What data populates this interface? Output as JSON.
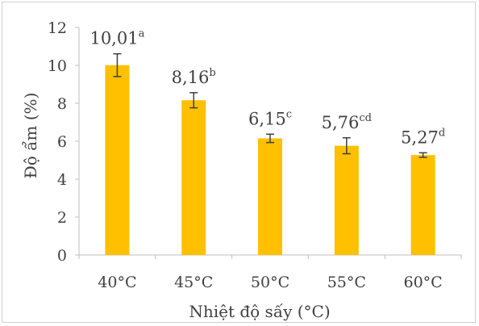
{
  "chart_data": {
    "type": "bar",
    "categories": [
      "40°C",
      "45°C",
      "50°C",
      "55°C",
      "60°C"
    ],
    "values": [
      10.01,
      8.16,
      6.15,
      5.76,
      5.27
    ],
    "errors": [
      0.6,
      0.4,
      0.22,
      0.42,
      0.12
    ],
    "data_labels": [
      {
        "value": "10,01",
        "letter": "a"
      },
      {
        "value": "8,16",
        "letter": "b"
      },
      {
        "value": "6,15",
        "letter": "c"
      },
      {
        "value": "5,76",
        "letter": "cd"
      },
      {
        "value": "5,27",
        "letter": "d"
      }
    ],
    "y_ticks": [
      "0",
      "2",
      "4",
      "6",
      "8",
      "10",
      "12"
    ],
    "ylim": [
      0,
      12
    ],
    "xlabel": "Nhiệt độ sấy (°C)",
    "ylabel": "Độ ẩm (%)",
    "bar_color": "#ffc000",
    "error_bar_color": "#404040",
    "grid": false,
    "legend": "none"
  }
}
